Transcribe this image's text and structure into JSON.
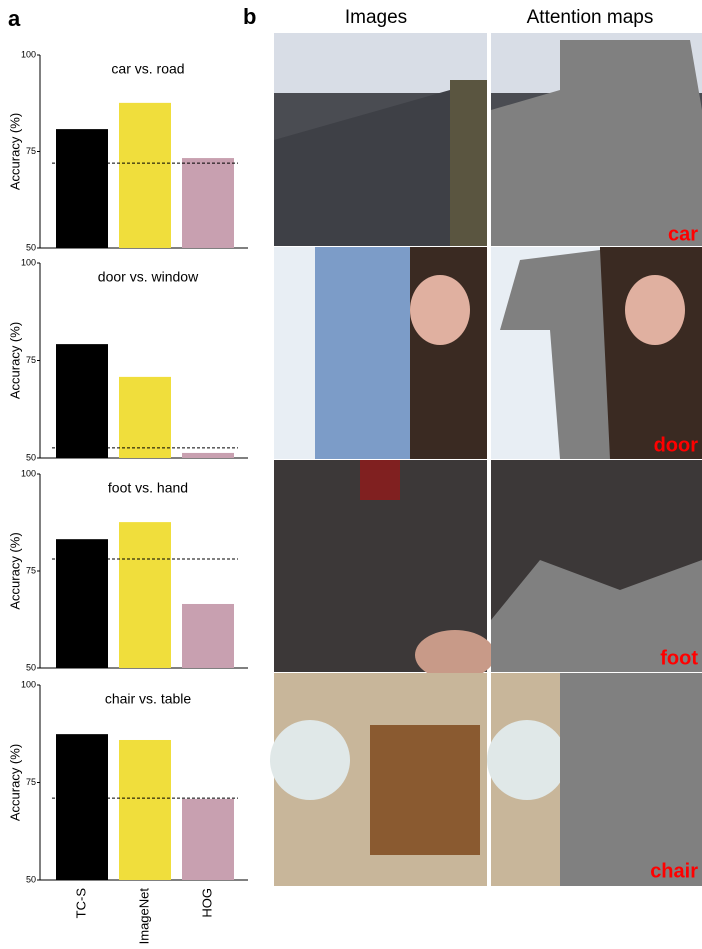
{
  "panel_labels": [
    "a",
    "b"
  ],
  "image_headers": [
    "Images",
    "Attention maps"
  ],
  "image_labels": [
    "car",
    "door",
    "foot",
    "chair"
  ],
  "chart_data": [
    {
      "type": "bar",
      "title": "car vs. road",
      "y_label": "Accuracy (%)",
      "categories": [
        null,
        null,
        null
      ],
      "values": [
        80.8,
        87.6,
        73.3
      ],
      "colors": [
        "#000000",
        "#f0de3c",
        "#c8a0b0"
      ],
      "reference_line": 72,
      "ylim": [
        50,
        100
      ],
      "yticks": [
        50,
        75,
        100
      ]
    },
    {
      "type": "bar",
      "title": "door vs. window",
      "y_label": "Accuracy (%)",
      "categories": [
        null,
        null,
        null
      ],
      "values": [
        79.2,
        70.8,
        51.3
      ],
      "colors": [
        "#000000",
        "#f0de3c",
        "#c8a0b0"
      ],
      "reference_line": 52.6,
      "ylim": [
        50,
        100
      ],
      "yticks": [
        50,
        75,
        100
      ]
    },
    {
      "type": "bar",
      "title": "foot vs. hand",
      "y_label": "Accuracy (%)",
      "categories": [
        null,
        null,
        null
      ],
      "values": [
        83.2,
        87.6,
        66.5
      ],
      "colors": [
        "#000000",
        "#f0de3c",
        "#c8a0b0"
      ],
      "reference_line": 78.1,
      "ylim": [
        50,
        100
      ],
      "yticks": [
        50,
        75,
        100
      ]
    },
    {
      "type": "bar",
      "title": "chair vs. table",
      "y_label": "Accuracy (%)",
      "categories": [
        "TC-S",
        "ImageNet",
        "HOG"
      ],
      "values": [
        87.4,
        85.9,
        70.8
      ],
      "colors": [
        "#000000",
        "#f0de3c",
        "#c8a0b0"
      ],
      "reference_line": 71,
      "ylim": [
        50,
        100
      ],
      "yticks": [
        50,
        75,
        100
      ]
    }
  ]
}
